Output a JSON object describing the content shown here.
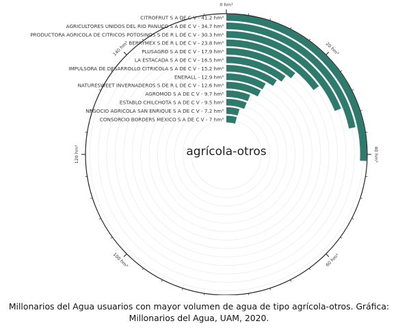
{
  "chart_data": {
    "type": "bar",
    "layout": "radial",
    "title": "agrícola-otros",
    "unit": "hm³",
    "bar_color": "#2e7a6c",
    "categories": [
      "CITROFRUT S A DE C V",
      "AGRICULTORES UNIDOS DEL RIO PANUCO S A DE C V",
      "PRODUCTORA AGRICOLA DE CITRICOS POTOSINOS S DE R L DE C V",
      "BERRYMEX S DE R L DE C V",
      "PLUSAGRO S A DE C V",
      "LA ESTACADA S A DE C V",
      "IMPULSORA DE DESARROLLO CITRICOLA S A DE C V",
      "ENERALL",
      "NATURESWEET INVERNADEROS S DE R L DE C V",
      "AGROMOD S A DE C V",
      "ESTABLO CHILCHOTA S A DE C V",
      "NEGOCIO AGRICOLA SAN ENRIQUE S A DE C V",
      "CONSORCIO BORDERS MEXICO S A DE C V"
    ],
    "values": [
      41.2,
      34.7,
      30.3,
      23.8,
      17.9,
      16.5,
      15.2,
      12.9,
      12.6,
      9.7,
      9.5,
      7.2,
      7
    ],
    "value_labels": [
      "41.2",
      "34.7",
      "30.3",
      "23.8",
      "17.9",
      "16.5",
      "15.2",
      "12.9",
      "12.6",
      "9.7",
      "9.5",
      "7.2",
      "7"
    ],
    "axis_ticks": [
      0,
      20,
      40,
      60,
      80,
      100,
      120,
      140
    ],
    "axis_tick_labels": [
      "0 hm³",
      "20 hm³",
      "40 hm³",
      "60 hm³",
      "80 hm³",
      "100 hm³",
      "120 hm³",
      "140 hm³"
    ],
    "axis_max": 160
  },
  "caption": {
    "line1": "Millonarios del Agua usuarios con mayor volumen de agua de tipo agrícola-otros. Gráfica:",
    "line2": "Millonarios del Agua, UAM, 2020."
  }
}
